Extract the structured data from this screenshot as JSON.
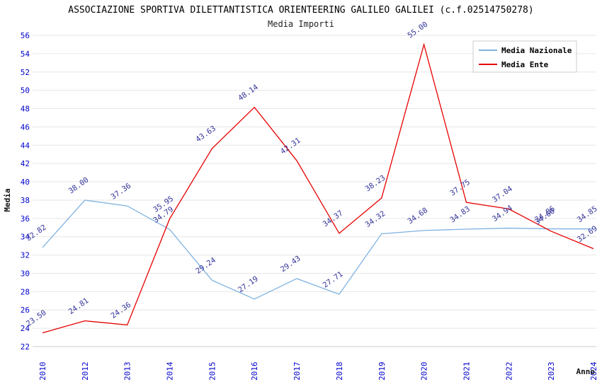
{
  "header": {
    "title": "ASSOCIAZIONE SPORTIVA DILETTANTISTICA ORIENTEERING GALILEO GALILEI (c.f.02514750278)",
    "subtitle": "Media Importi"
  },
  "chart_data": {
    "type": "line",
    "title": "Media Importi",
    "xlabel": "Anno",
    "ylabel": "Media",
    "categories": [
      "2010",
      "2012",
      "2013",
      "2014",
      "2015",
      "2016",
      "2017",
      "2018",
      "2019",
      "2020",
      "2021",
      "2022",
      "2023",
      "2024"
    ],
    "series": [
      {
        "name": "Media Nazionale",
        "color": "#7fb2e0",
        "values": [
          32.82,
          38.0,
          37.36,
          34.79,
          29.24,
          27.19,
          29.43,
          27.71,
          34.32,
          34.68,
          34.83,
          34.94,
          34.86,
          34.85
        ]
      },
      {
        "name": "Media Ente",
        "color": "#e60000",
        "values": [
          23.5,
          24.81,
          24.36,
          35.95,
          43.63,
          48.14,
          42.31,
          34.37,
          38.23,
          55.0,
          37.75,
          37.04,
          34.6,
          32.69
        ]
      }
    ],
    "ylim": [
      22,
      56
    ],
    "ytick_step": 2,
    "yticks": [
      22,
      24,
      26,
      28,
      30,
      32,
      34,
      36,
      38,
      40,
      42,
      44,
      46,
      48,
      50,
      52,
      54,
      56
    ],
    "grid": "horizontal",
    "legend_position": "top-right",
    "colors": {
      "tick_label": "#0000cc",
      "point_label": "#333399",
      "gridline": "#e6e6e6",
      "axis_line": "#cccccc",
      "legend_border": "#cccccc",
      "background": "#ffffff"
    }
  }
}
